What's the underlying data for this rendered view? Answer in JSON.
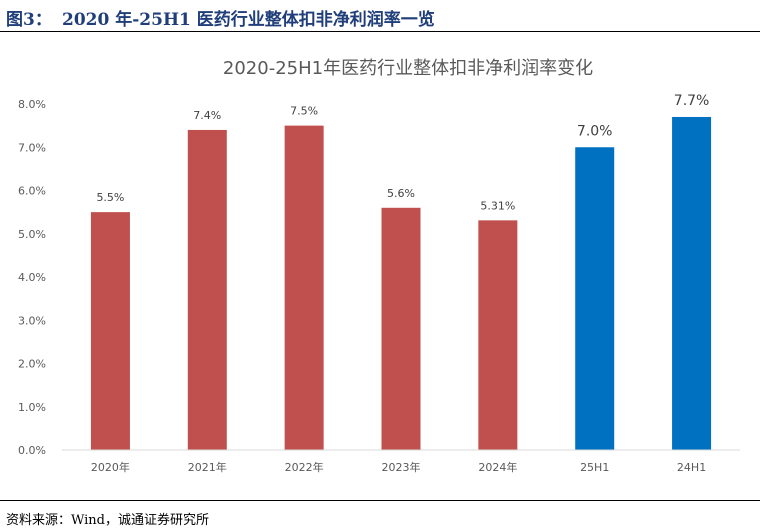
{
  "figure": {
    "label": "图3：",
    "title": "2020 年-25H1 医药行业整体扣非净利润率一览",
    "source": "资料来源：Wind，诚通证券研究所"
  },
  "colors": {
    "header_text": "#1F3E7A",
    "bar_annual": "#C0504D",
    "bar_half": "#0070C0"
  },
  "chart_data": {
    "type": "bar",
    "title": "2020-25H1年医药行业整体扣非净利润率变化",
    "xlabel": "",
    "ylabel": "",
    "categories": [
      "2020年",
      "2021年",
      "2022年",
      "2023年",
      "2024年",
      "25H1",
      "24H1"
    ],
    "values": [
      5.5,
      7.4,
      7.5,
      5.6,
      5.31,
      7.0,
      7.7
    ],
    "data_labels": [
      "5.5%",
      "7.4%",
      "7.5%",
      "5.6%",
      "5.31%",
      "7.0%",
      "7.7%"
    ],
    "bar_colors": [
      "#C0504D",
      "#C0504D",
      "#C0504D",
      "#C0504D",
      "#C0504D",
      "#0070C0",
      "#0070C0"
    ],
    "ylim": [
      0,
      8
    ],
    "yticks": [
      0,
      1,
      2,
      3,
      4,
      5,
      6,
      7,
      8
    ],
    "ytick_labels": [
      "0.0%",
      "1.0%",
      "2.0%",
      "3.0%",
      "4.0%",
      "5.0%",
      "6.0%",
      "7.0%",
      "8.0%"
    ],
    "grid": false,
    "legend": "none"
  }
}
